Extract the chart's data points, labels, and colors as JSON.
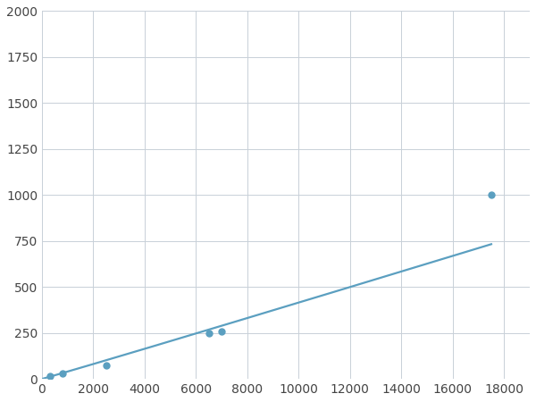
{
  "x_data": [
    300,
    800,
    2500,
    6500,
    7000,
    17500
  ],
  "y_data": [
    15,
    30,
    75,
    250,
    260,
    1000
  ],
  "line_color": "#5b9fc0",
  "marker_color": "#5b9fc0",
  "marker_size": 5,
  "line_width": 1.6,
  "xlim": [
    0,
    19000
  ],
  "ylim": [
    0,
    2000
  ],
  "xticks": [
    0,
    2000,
    4000,
    6000,
    8000,
    10000,
    12000,
    14000,
    16000,
    18000
  ],
  "yticks": [
    0,
    250,
    500,
    750,
    1000,
    1250,
    1500,
    1750,
    2000
  ],
  "grid_color": "#c8d0d8",
  "background_color": "#ffffff",
  "tick_fontsize": 10
}
